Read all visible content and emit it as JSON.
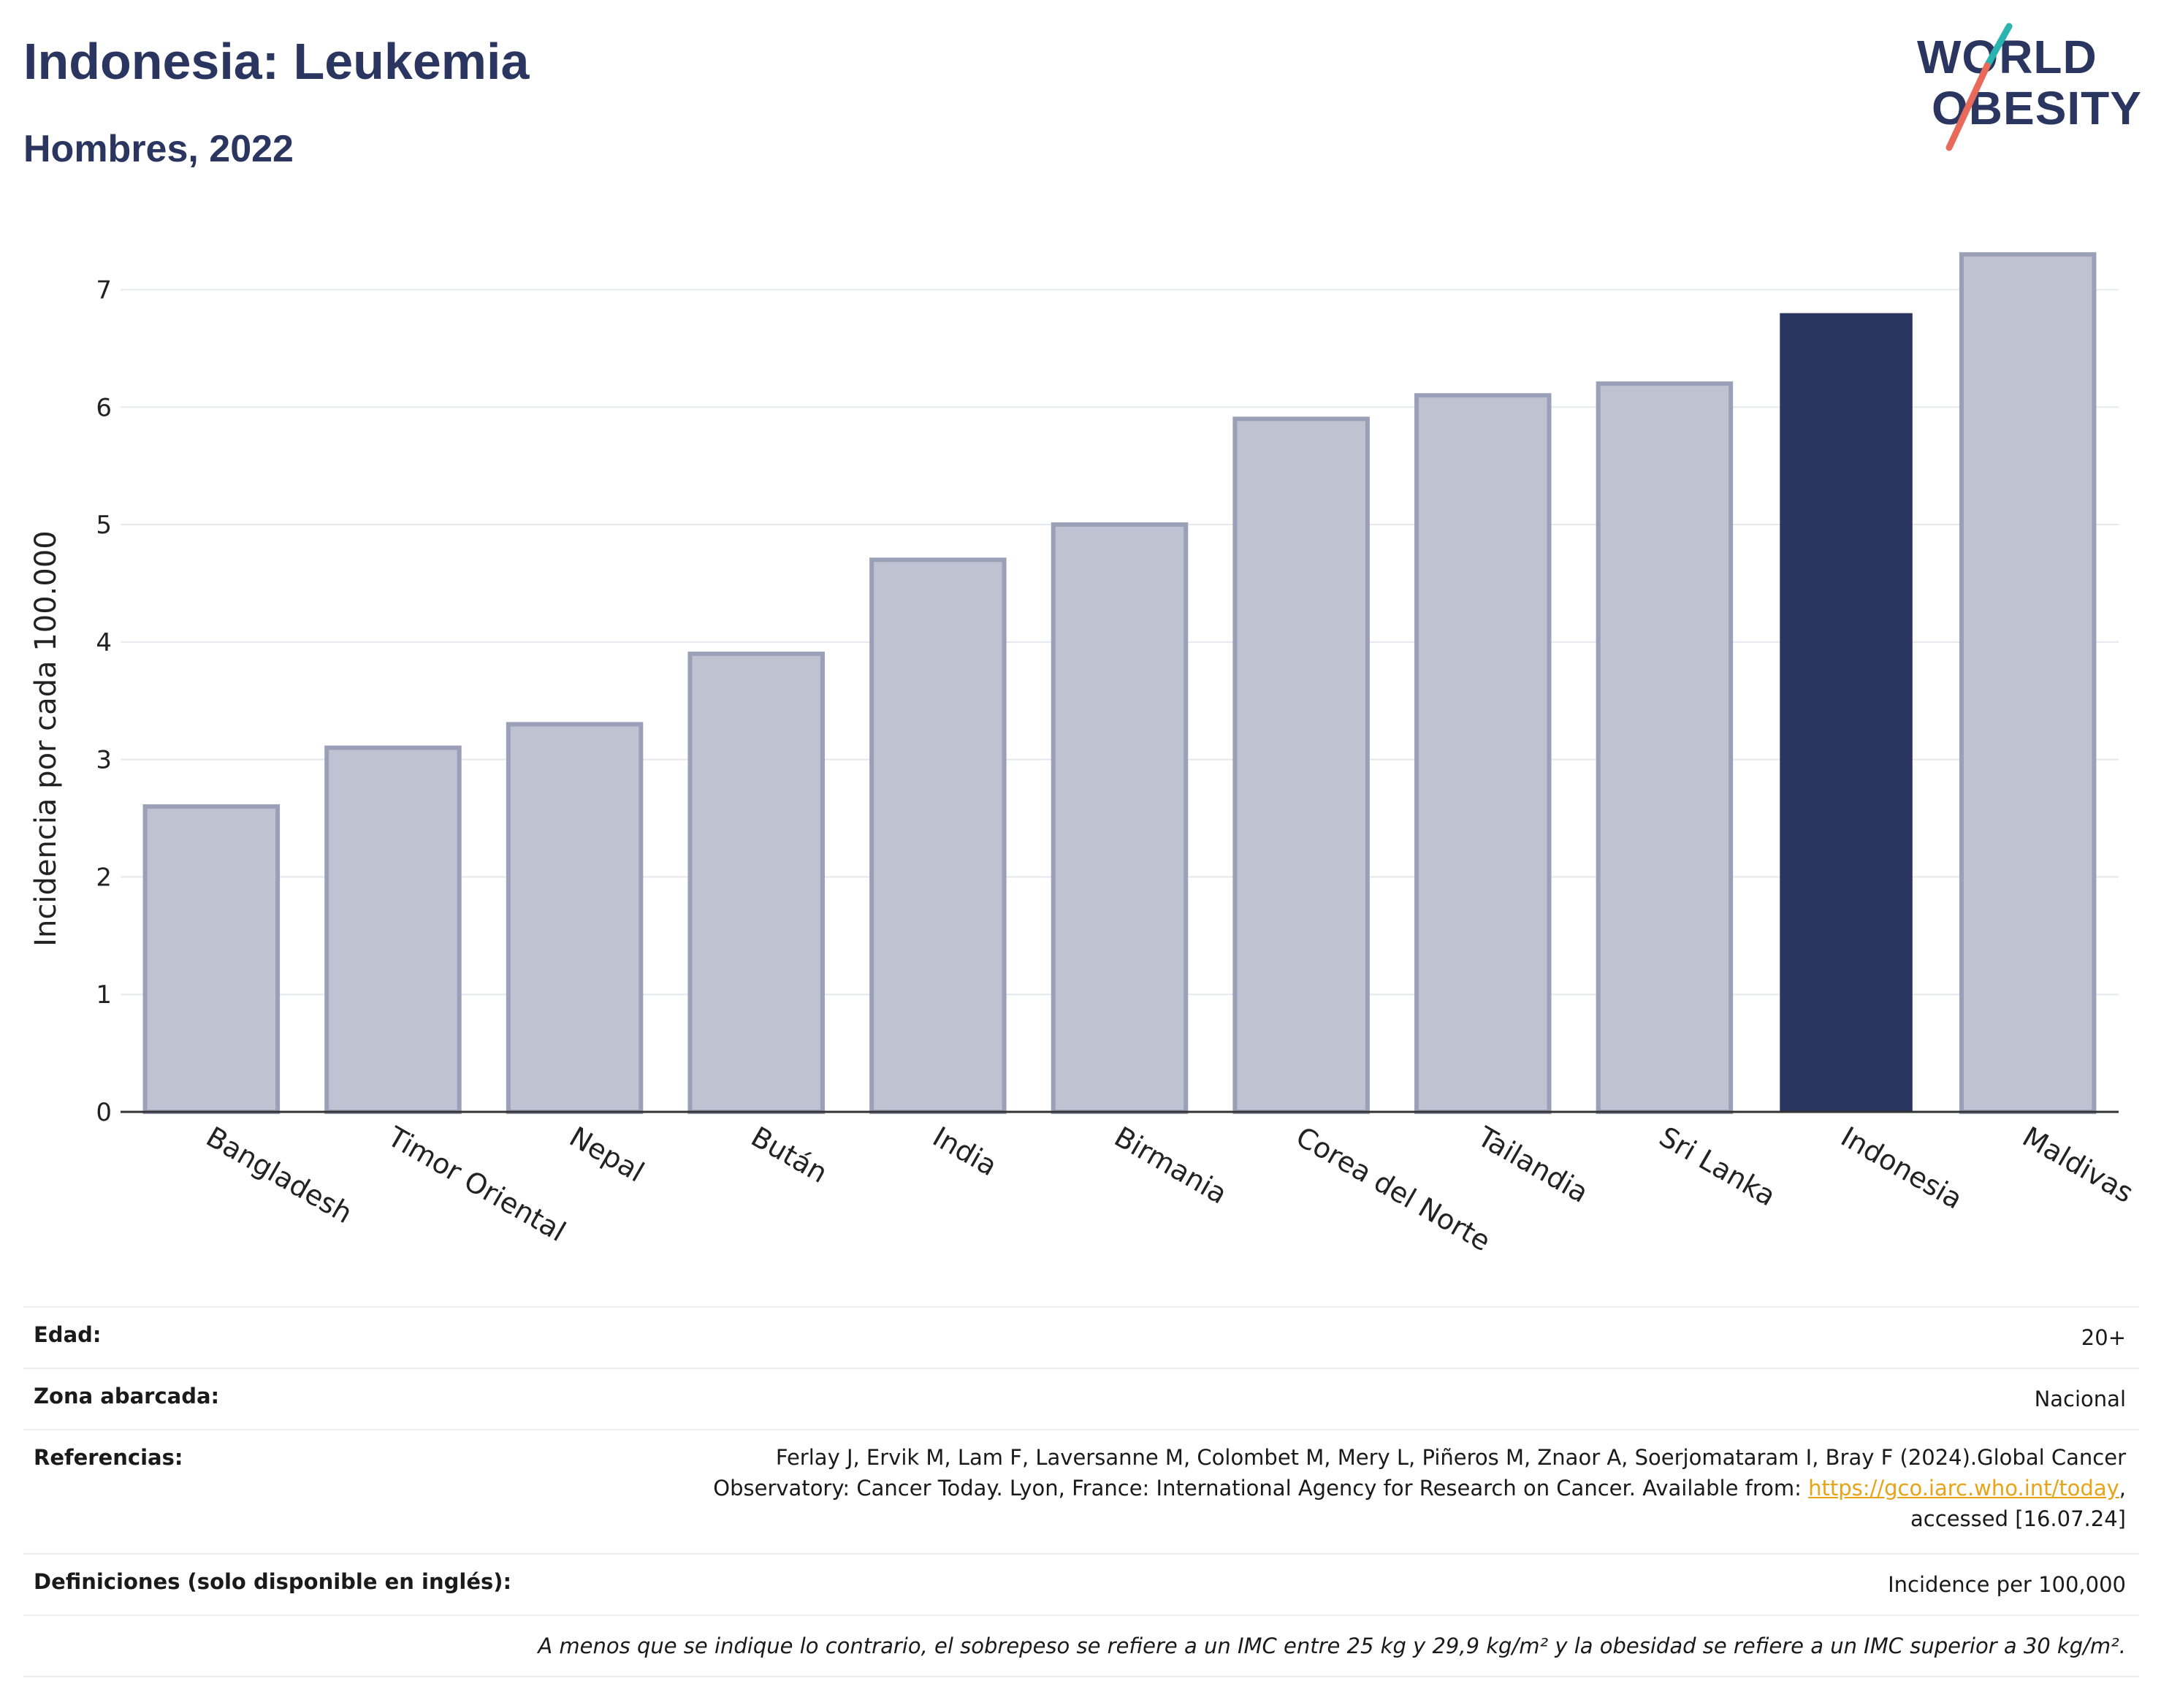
{
  "header": {
    "title": "Indonesia: Leukemia",
    "subtitle": "Hombres, 2022"
  },
  "logo": {
    "line1": "WORLD",
    "line2": "OBESITY"
  },
  "chart_data": {
    "type": "bar",
    "categories": [
      "Bangladesh",
      "Timor Oriental",
      "Nepal",
      "Bután",
      "India",
      "Birmania",
      "Corea del Norte",
      "Tailandia",
      "Sri Lanka",
      "Indonesia",
      "Maldivas"
    ],
    "values": [
      2.6,
      3.1,
      3.3,
      3.9,
      4.7,
      5.0,
      5.9,
      6.1,
      6.2,
      6.8,
      7.3
    ],
    "highlight": "Indonesia",
    "ylabel": "Incidencia por cada 100.000",
    "ylim": [
      0,
      7.6
    ],
    "yticks": [
      "0",
      "1",
      "2",
      "3",
      "4",
      "5",
      "6",
      "7"
    ],
    "grid": true,
    "colors": {
      "bar": "#bfc2d0",
      "bar_edge": "#9aa0b8",
      "highlight": "#2a3560",
      "grid": "#e6e8ee",
      "axis": "#333333"
    }
  },
  "info": {
    "age_label": "Edad:",
    "age_value": "20+",
    "area_label": "Zona abarcada:",
    "area_value": "Nacional",
    "refs_label": "Referencias:",
    "refs_line1": "Ferlay J, Ervik M, Lam F, Laversanne M, Colombet M, Mery L, Piñeros M, Znaor A, Soerjomataram I, Bray F (2024).Global Cancer",
    "refs_line2_pre": "Observatory: Cancer Today. Lyon, France: International Agency for Research on Cancer. Available from: ",
    "refs_link": "https://gco.iarc.who.int/today",
    "refs_line2_post": ",",
    "refs_line3": "accessed [16.07.24]",
    "defs_label": "Definiciones (solo disponible en inglés):",
    "defs_value": "Incidence per 100,000",
    "note": "A menos que se indique lo contrario, el sobrepeso se refiere a un IMC entre 25 kg y 29,9 kg/m² y la obesidad se refiere a un IMC superior a 30 kg/m²."
  }
}
